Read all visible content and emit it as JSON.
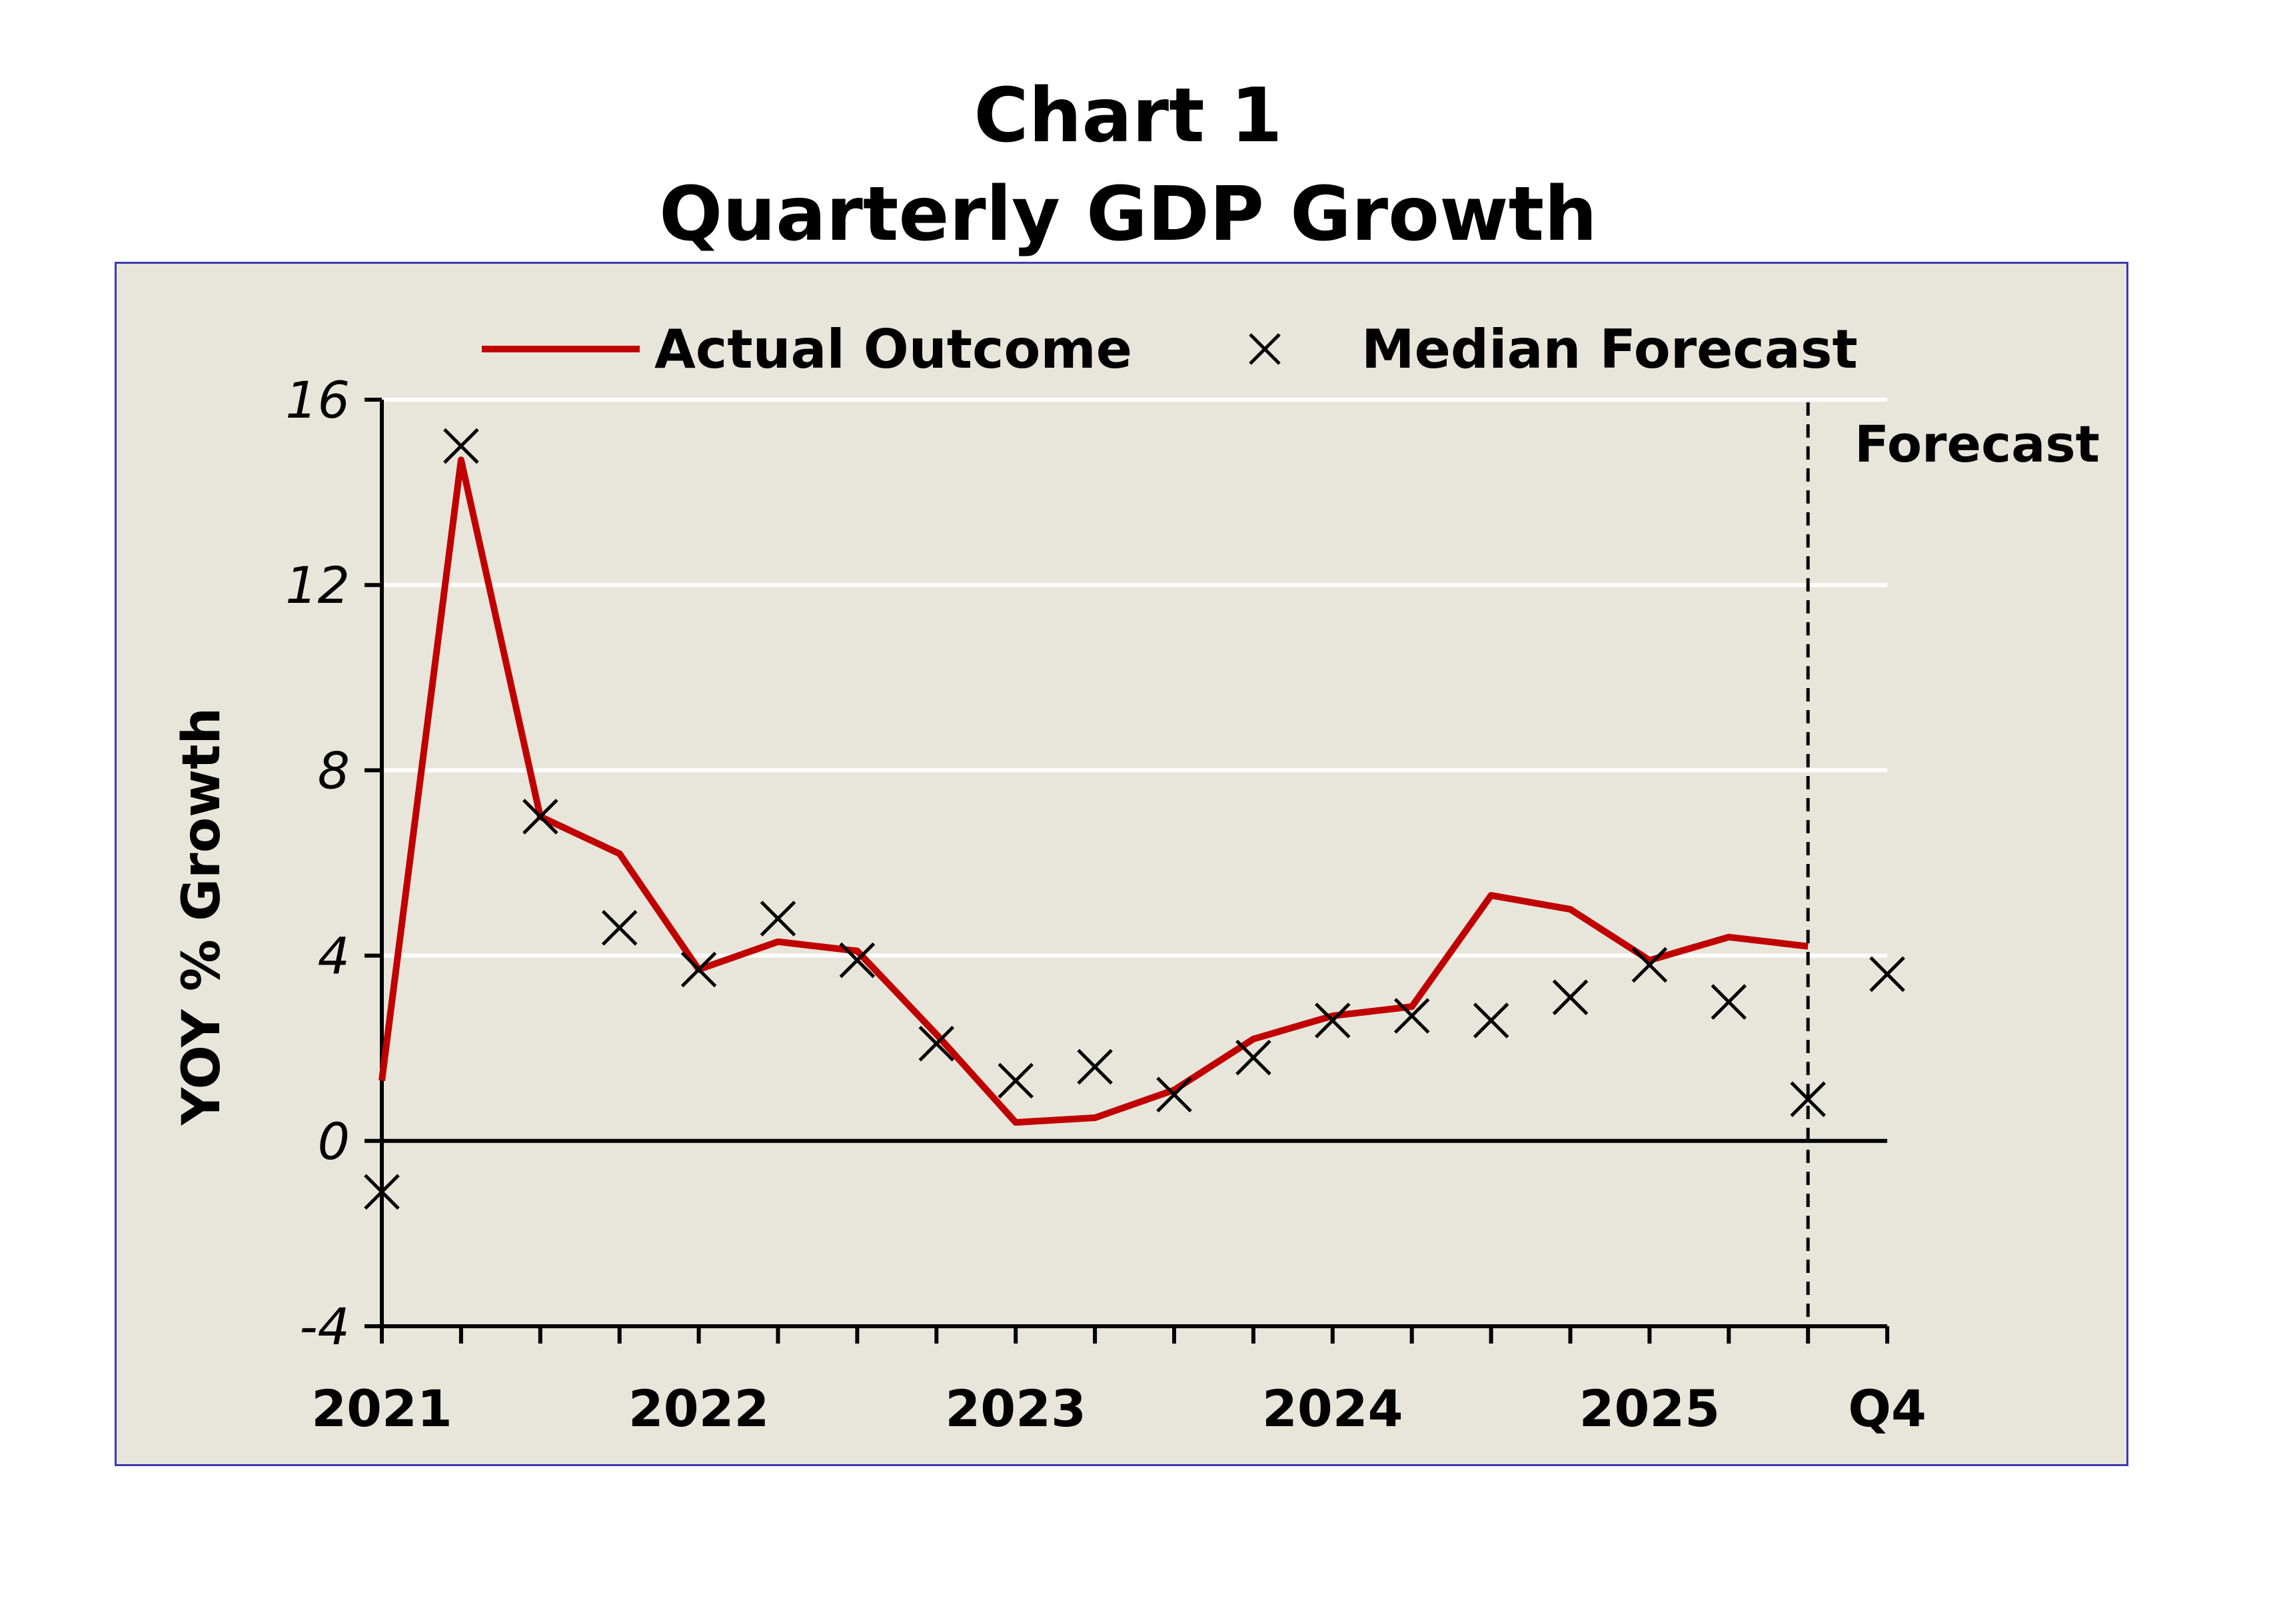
{
  "title": {
    "line1": "Chart 1",
    "line2": "Quarterly GDP Growth"
  },
  "chart_data": {
    "type": "line",
    "title": "Chart 1 Quarterly GDP Growth",
    "xlabel": "",
    "ylabel": "YOY % Growth",
    "ylim": [
      -4,
      16
    ],
    "yticks": [
      -4,
      0,
      4,
      8,
      12,
      16
    ],
    "ytick_labels": [
      "-4",
      "0",
      "4",
      "8",
      "12",
      "16"
    ],
    "x_count": 20,
    "x_label_positions": [
      0,
      4,
      8,
      12,
      16,
      19
    ],
    "x_labels": [
      "2021",
      "2022",
      "2023",
      "2024",
      "2025",
      "Q4"
    ],
    "grid": true,
    "forecast_divider_x": 18,
    "annotation": "Forecast",
    "legend": {
      "placement": "top",
      "entries": [
        "Actual Outcome",
        "Median Forecast"
      ]
    },
    "series": [
      {
        "name": "Actual Outcome",
        "style": "line",
        "color": "#c00000",
        "x": [
          0,
          1,
          2,
          3,
          4,
          5,
          6,
          7,
          8,
          9,
          10,
          11,
          12,
          13,
          14,
          15,
          16,
          17,
          18
        ],
        "values": [
          1.3,
          14.7,
          7.0,
          6.2,
          3.7,
          4.3,
          4.1,
          2.3,
          0.4,
          0.5,
          1.1,
          2.2,
          2.7,
          2.9,
          5.3,
          5.0,
          3.9,
          4.4,
          4.2
        ]
      },
      {
        "name": "Median Forecast",
        "style": "x-marker",
        "color": "#000000",
        "x": [
          0,
          1,
          2,
          3,
          4,
          5,
          6,
          7,
          8,
          9,
          10,
          11,
          12,
          13,
          14,
          15,
          16,
          17,
          18,
          19
        ],
        "values": [
          -1.1,
          15.0,
          7.0,
          4.6,
          3.7,
          4.8,
          3.9,
          2.1,
          1.3,
          1.6,
          1.0,
          1.8,
          2.6,
          2.7,
          2.6,
          3.1,
          3.8,
          3.0,
          0.9,
          3.6
        ]
      }
    ]
  }
}
